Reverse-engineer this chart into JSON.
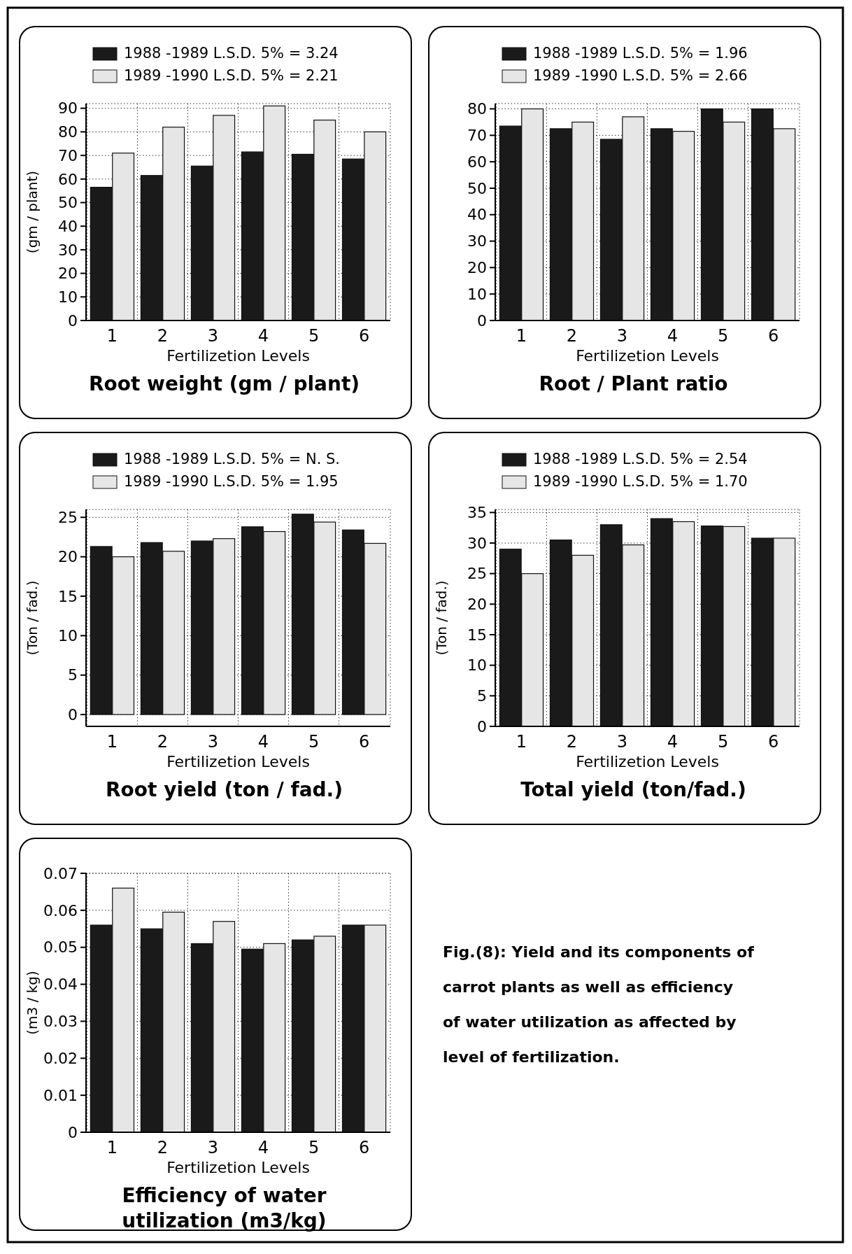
{
  "chart_data": [
    {
      "type": "bar",
      "title": "Root weight (gm / plant)",
      "xlabel": "Fertilizetion Levels",
      "ylabel": "(gm / plant)",
      "categories": [
        "1",
        "2",
        "3",
        "4",
        "5",
        "6"
      ],
      "series": [
        {
          "name": "1988 -1989  L.S.D. 5% = 3.24",
          "color": "#1a1a1a",
          "values": [
            56.5,
            61.5,
            65.5,
            71.5,
            70.5,
            68.5
          ]
        },
        {
          "name": "1989 -1990  L.S.D. 5% = 2.21",
          "color": "#e6e6e6",
          "values": [
            71,
            82,
            87,
            91,
            85,
            80
          ]
        }
      ],
      "ylim": [
        0,
        92
      ],
      "yticks": [
        0,
        10,
        20,
        30,
        40,
        50,
        60,
        70,
        80,
        90
      ],
      "grid": true,
      "legend": "top"
    },
    {
      "type": "bar",
      "title": "Root / Plant ratio",
      "xlabel": "Fertilizetion Levels",
      "categories": [
        "1",
        "2",
        "3",
        "4",
        "5",
        "6"
      ],
      "series": [
        {
          "name": "1988 -1989  L.S.D. 5% = 1.96",
          "color": "#1a1a1a",
          "values": [
            73.5,
            72.5,
            68.5,
            72.5,
            80,
            80
          ]
        },
        {
          "name": "1989 -1990  L.S.D. 5% = 2.66",
          "color": "#e6e6e6",
          "values": [
            80,
            75,
            77,
            71.5,
            75,
            72.5
          ]
        }
      ],
      "ylim": [
        0,
        82
      ],
      "yticks": [
        0,
        10,
        20,
        30,
        40,
        50,
        60,
        70,
        80
      ],
      "grid": true,
      "legend": "top"
    },
    {
      "type": "bar",
      "title": "Root yield (ton / fad.)",
      "xlabel": "Fertilizetion Levels",
      "ylabel": "(Ton / fad.)",
      "categories": [
        "1",
        "2",
        "3",
        "4",
        "5",
        "6"
      ],
      "series": [
        {
          "name": "1988 -1989  L.S.D. 5% = N. S.",
          "color": "#1a1a1a",
          "values": [
            21.3,
            21.8,
            22,
            23.8,
            25.4,
            23.4
          ]
        },
        {
          "name": "1989 -1990  L.S.D. 5% = 1.95",
          "color": "#e6e6e6",
          "values": [
            20,
            20.7,
            22.3,
            23.2,
            24.4,
            21.7
          ]
        }
      ],
      "ylim": [
        -1.5,
        26
      ],
      "yticks": [
        0,
        5,
        10,
        15,
        20,
        25
      ],
      "grid": true,
      "legend": "top"
    },
    {
      "type": "bar",
      "title": "Total yield (ton/fad.)",
      "xlabel": "Fertilizetion Levels",
      "ylabel": "(Ton / fad.)",
      "categories": [
        "1",
        "2",
        "3",
        "4",
        "5",
        "6"
      ],
      "series": [
        {
          "name": "1988 -1989  L.S.D. 5% = 2.54",
          "color": "#1a1a1a",
          "values": [
            29,
            30.5,
            33,
            34,
            32.8,
            30.8
          ]
        },
        {
          "name": "1989 -1990  L.S.D. 5% = 1.70",
          "color": "#e6e6e6",
          "values": [
            25,
            28,
            29.7,
            33.5,
            32.7,
            30.8
          ]
        }
      ],
      "ylim": [
        0,
        35.5
      ],
      "yticks": [
        0,
        5,
        10,
        15,
        20,
        25,
        30,
        35
      ],
      "grid": true,
      "legend": "top"
    },
    {
      "type": "bar",
      "title": "Efficiency of water utilization (m3/kg)",
      "xlabel": "Fertilizetion Levels",
      "ylabel": "(m3 / kg)",
      "categories": [
        "1",
        "2",
        "3",
        "4",
        "5",
        "6"
      ],
      "series": [
        {
          "color": "#1a1a1a",
          "values": [
            0.056,
            0.055,
            0.051,
            0.0495,
            0.052,
            0.056
          ]
        },
        {
          "color": "#e6e6e6",
          "values": [
            0.066,
            0.0595,
            0.057,
            0.051,
            0.053,
            0.056
          ]
        }
      ],
      "ylim": [
        0,
        0.07
      ],
      "yticks": [
        0,
        0.01,
        0.02,
        0.03,
        0.04,
        0.05,
        0.06,
        0.07
      ],
      "grid": true
    },
    {
      "type": "other",
      "annotations": [
        "Fig.(8): Yield and its components of carrot plants as well as efficiency of water utilization as affected by level of fertilization."
      ]
    }
  ]
}
